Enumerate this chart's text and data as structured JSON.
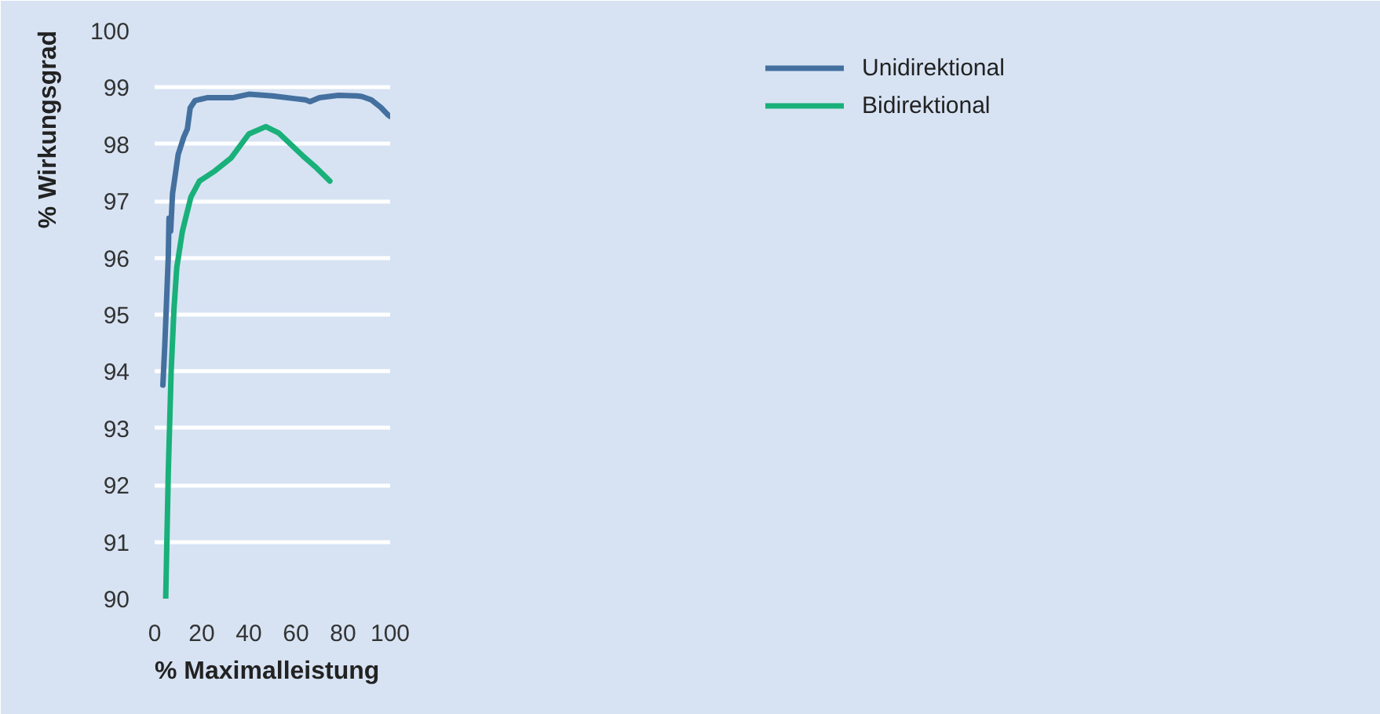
{
  "chart_data": {
    "type": "line",
    "xlabel": "% Maximalleistung",
    "ylabel": "% Wirkungsgrad",
    "xlim": [
      0,
      100
    ],
    "ylim": [
      90,
      100
    ],
    "xticks": [
      0,
      20,
      40,
      60,
      80,
      100
    ],
    "yticks": [
      90,
      91,
      92,
      93,
      94,
      95,
      96,
      97,
      98,
      99,
      100
    ],
    "grid": "y",
    "legend": "top right",
    "marker": "none",
    "line_style": "solid",
    "series": [
      {
        "name": "Unidirektional",
        "color": "#44709f",
        "x": [
          3.5,
          4.3,
          5.8,
          6.1,
          6.8,
          7.6,
          8.2,
          10.0,
          12.4,
          13.9,
          15.1,
          17.2,
          22.6,
          33.4,
          40,
          50,
          60,
          64,
          66,
          70,
          78,
          86,
          88,
          92,
          96,
          99,
          100
        ],
        "values": [
          93.76,
          94.45,
          96.02,
          96.7,
          96.47,
          97.13,
          97.3,
          97.82,
          98.13,
          98.27,
          98.64,
          98.77,
          98.82,
          98.82,
          98.88,
          98.85,
          98.8,
          98.78,
          98.75,
          98.82,
          98.86,
          98.85,
          98.84,
          98.78,
          98.65,
          98.52,
          98.49
        ]
      },
      {
        "name": "Bidirektional",
        "color": "#19b07a",
        "x": [
          4.7,
          5.8,
          7.0,
          8.2,
          9.4,
          11.8,
          15.4,
          19.0,
          25.6,
          32.5,
          40,
          47.2,
          52.6,
          62.8,
          68.8,
          74.4
        ],
        "values": [
          90.0,
          92.24,
          93.99,
          95.09,
          95.83,
          96.47,
          97.07,
          97.35,
          97.53,
          97.76,
          98.18,
          98.31,
          98.2,
          97.8,
          97.58,
          97.35
        ]
      }
    ]
  }
}
